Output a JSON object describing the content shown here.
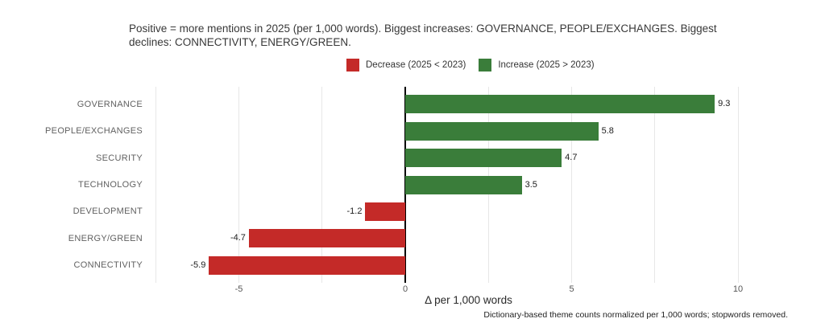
{
  "title": "Positive = more mentions in 2025 (per 1,000 words). Biggest increases: GOVERNANCE, PEOPLE/EXCHANGES. Biggest declines: CONNECTIVITY, ENERGY/GREEN.",
  "legend": [
    {
      "label": "Decrease (2025 < 2023)",
      "color": "#c42a28"
    },
    {
      "label": "Increase (2025 > 2023)",
      "color": "#3a7d3a"
    }
  ],
  "chart_data": {
    "type": "bar",
    "orientation": "horizontal",
    "title": "Positive = more mentions in 2025 (per 1,000 words). Biggest increases: GOVERNANCE, PEOPLE/EXCHANGES. Biggest declines: CONNECTIVITY, ENERGY/GREEN.",
    "categories": [
      "GOVERNANCE",
      "PEOPLE/EXCHANGES",
      "SECURITY",
      "TECHNOLOGY",
      "DEVELOPMENT",
      "ENERGY/GREEN",
      "CONNECTIVITY"
    ],
    "values": [
      9.3,
      5.8,
      4.7,
      3.5,
      -1.2,
      -4.7,
      -5.9
    ],
    "value_labels": [
      "9.3",
      "5.8",
      "4.7",
      "3.5",
      "-1.2",
      "-4.7",
      "-5.9"
    ],
    "positive_color": "#3a7d3a",
    "negative_color": "#c42a28",
    "xlabel": "Δ per 1,000 words",
    "xlim": [
      -7.7,
      11.5
    ],
    "xticks": [
      -5,
      0,
      5,
      10
    ],
    "xtick_labels": [
      "-5",
      "0",
      "5",
      "10"
    ],
    "gridlines": [
      -7.5,
      -5,
      -2.5,
      2.5,
      5,
      7.5,
      10
    ],
    "gridline_color": "#e7e7e7",
    "zero_line_color": "#000000",
    "legend_position": "top-center",
    "grid": "vertical-only"
  },
  "footer": "Dictionary-based theme counts normalized per 1,000 words; stopwords removed."
}
